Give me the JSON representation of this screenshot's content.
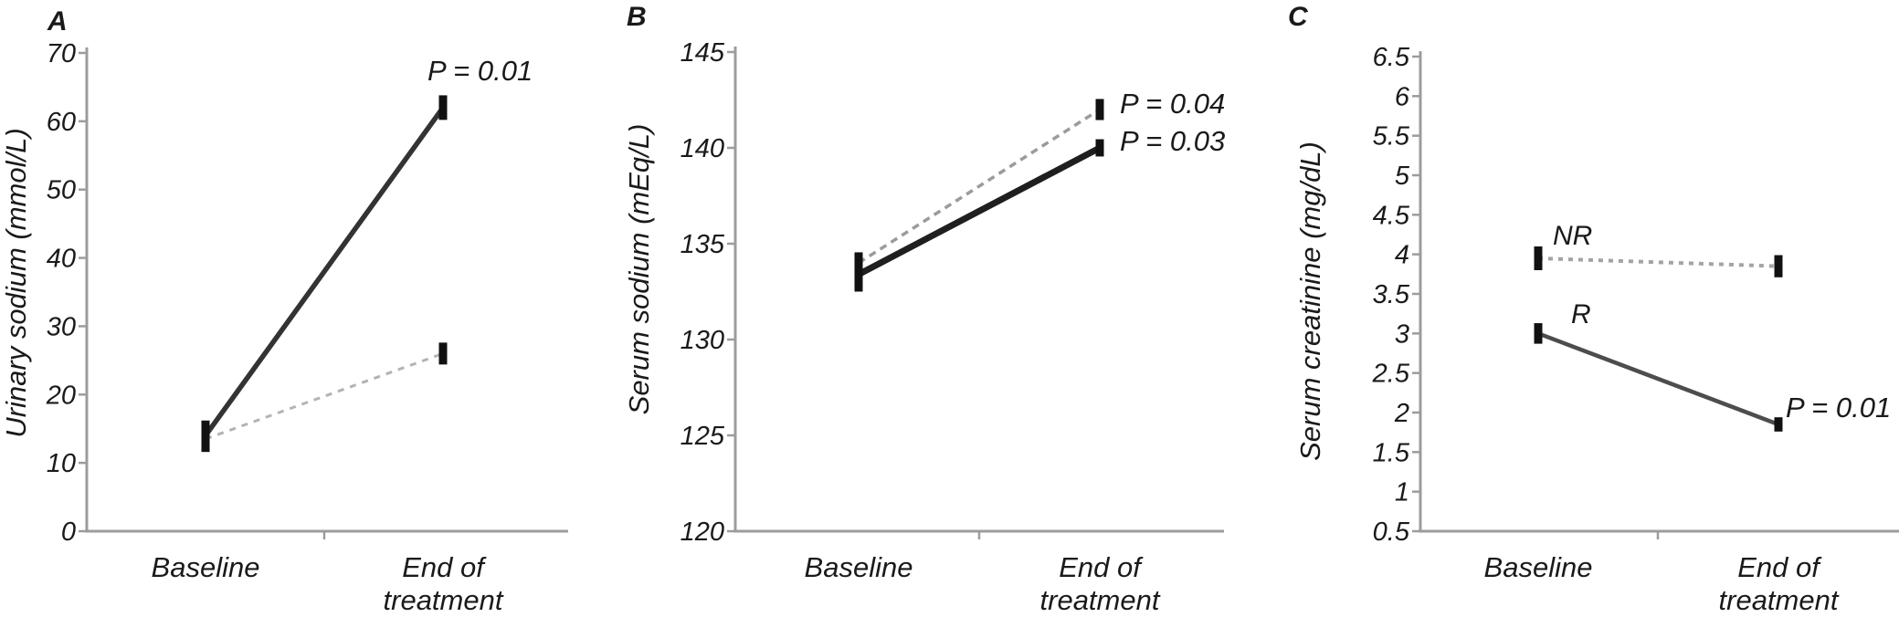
{
  "figure": {
    "background": "#ffffff",
    "text_color": "#1a1a1a",
    "axis_color": "#9c9c9c",
    "error_bar_color": "#111111"
  },
  "chart_data": [
    {
      "type": "line",
      "panel_label": "A",
      "ylabel": "Urinary sodium (mmol/L)",
      "ylim": [
        0,
        70
      ],
      "ytick_step": 10,
      "grid": false,
      "legend_position": "none",
      "categories": [
        "Baseline",
        "End of treatment"
      ],
      "categories_display": [
        [
          "Baseline"
        ],
        [
          "End of",
          "treatment"
        ]
      ],
      "series": [
        {
          "name": "solid-line",
          "style": "solid",
          "color": "#333333",
          "values": [
            14,
            62
          ],
          "error": [
            2.2,
            1.8
          ],
          "p_label": "P = 0.01"
        },
        {
          "name": "dashed-line",
          "style": "dashed",
          "color": "#b3b3b3",
          "values": [
            13.5,
            26
          ],
          "error": [
            1.9,
            1.6
          ]
        }
      ]
    },
    {
      "type": "line",
      "panel_label": "B",
      "ylabel": "Serum sodium (mEq/L)",
      "ylim": [
        120,
        145
      ],
      "ytick_step": 5,
      "grid": false,
      "legend_position": "none",
      "categories": [
        "Baseline",
        "End of treatment"
      ],
      "categories_display": [
        [
          "Baseline"
        ],
        [
          "End of",
          "treatment"
        ]
      ],
      "series": [
        {
          "name": "dashed-line",
          "style": "dashed",
          "color": "#9b9b9b",
          "values": [
            134,
            142
          ],
          "error": [
            0.55,
            0.55
          ],
          "p_label": "P = 0.04"
        },
        {
          "name": "solid-line",
          "style": "solid",
          "color": "#1f1f1f",
          "values": [
            133.4,
            140
          ],
          "error": [
            0.9,
            0.45
          ],
          "p_label": "P = 0.03"
        }
      ]
    },
    {
      "type": "line",
      "panel_label": "C",
      "ylabel": "Serum creatinine (mg/dL)",
      "ylim": [
        0.5,
        6.5
      ],
      "ytick_step": 0.5,
      "grid": false,
      "legend_position": "none",
      "categories": [
        "Baseline",
        "End of treatment"
      ],
      "categories_display": [
        [
          "Baseline"
        ],
        [
          "End of",
          "treatment"
        ]
      ],
      "series": [
        {
          "name": "non-responders",
          "line_label": "NR",
          "style": "dashed",
          "color": "#a3a3a3",
          "values": [
            3.95,
            3.85
          ],
          "error": [
            0.15,
            0.14
          ]
        },
        {
          "name": "responders",
          "line_label": "R",
          "style": "solid",
          "color": "#4d4d4d",
          "values": [
            3.0,
            1.85
          ],
          "error": [
            0.13,
            0.09
          ],
          "p_label": "P = 0.01"
        }
      ]
    }
  ]
}
